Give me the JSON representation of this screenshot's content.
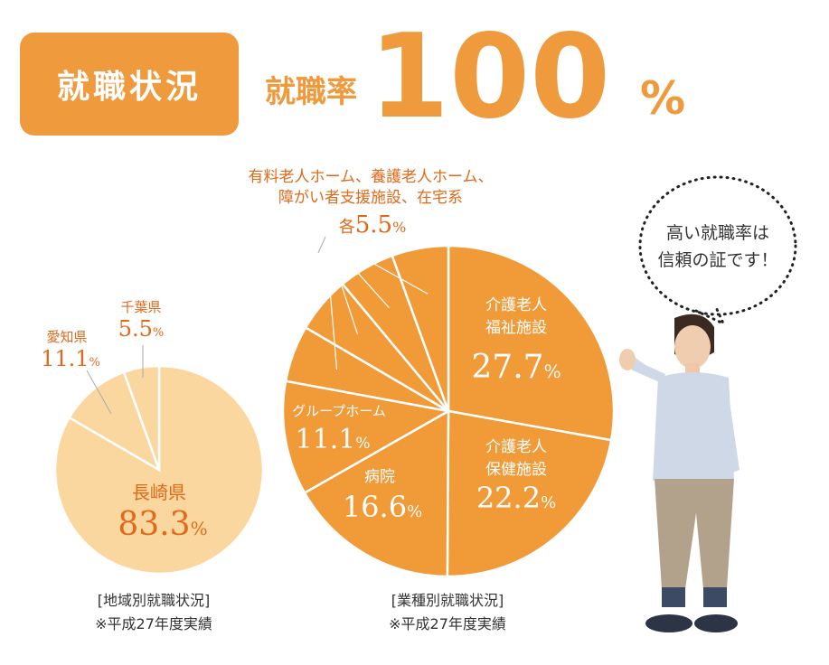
{
  "header": {
    "badge": "就職状況",
    "rate_label": "就職率",
    "rate_value": "100",
    "rate_unit": "%"
  },
  "colors": {
    "accent": "#ef9a3c",
    "pie_industry": "#f09a38",
    "pie_region": "#fbd7a0",
    "label_orange": "#e06a1a",
    "label_on_dark": "#ffffff"
  },
  "chart_data": [
    {
      "type": "pie",
      "title": "[地域別就職状況]",
      "note": "※平成27年度実績",
      "slices": [
        {
          "label": "長崎県",
          "value": 83.3,
          "display": "83.3",
          "unit": "%"
        },
        {
          "label": "愛知県",
          "value": 11.1,
          "display": "11.1",
          "unit": "%"
        },
        {
          "label": "千葉県",
          "value": 5.5,
          "display": "5.5",
          "unit": "%"
        }
      ]
    },
    {
      "type": "pie",
      "title": "[業種別就職状況]",
      "note": "※平成27年度実績",
      "slices": [
        {
          "label": "介護老人福祉施設",
          "value": 27.7,
          "display": "27.7",
          "unit": "%"
        },
        {
          "label": "介護老人保健施設",
          "value": 22.2,
          "display": "22.2",
          "unit": "%"
        },
        {
          "label": "病院",
          "value": 16.6,
          "display": "16.6",
          "unit": "%"
        },
        {
          "label": "グループホーム",
          "value": 11.1,
          "display": "11.1",
          "unit": "%"
        },
        {
          "label": "有料老人ホーム",
          "value": 5.5
        },
        {
          "label": "養護老人ホーム",
          "value": 5.5
        },
        {
          "label": "障がい者支援施設",
          "value": 5.5
        },
        {
          "label": "在宅系",
          "value": 5.5
        }
      ],
      "group_label_line1": "有料老人ホーム、養護老人ホーム、",
      "group_label_line2": "障がい者支援施設、在宅系",
      "group_prefix": "各",
      "group_value": "5.5",
      "group_unit": "%"
    }
  ],
  "speech_bubble": {
    "line1": "高い就職率は",
    "line2": "信頼の証です！"
  }
}
